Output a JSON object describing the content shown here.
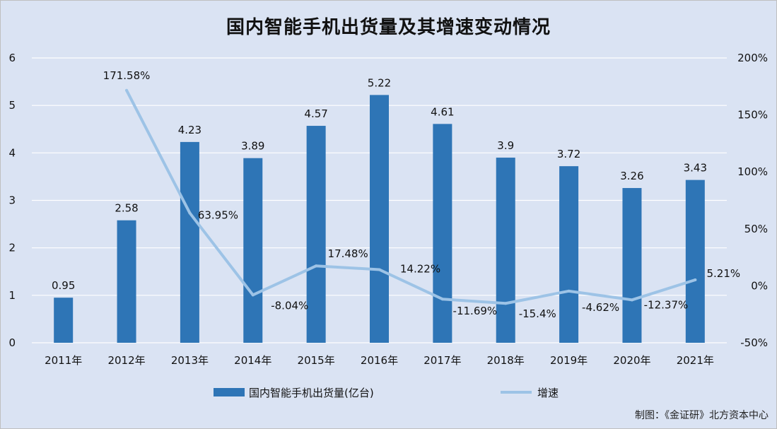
{
  "title": "国内智能手机出货量及其增速变动情况",
  "credit": "制图：《金证研》北方资本中心",
  "colors": {
    "background": "#dae3f3",
    "bar": "#2e75b6",
    "line": "#9dc3e6",
    "grid": "#ffffff",
    "text": "#111111"
  },
  "chart_data": {
    "type": "bar+line",
    "categories": [
      "2011年",
      "2012年",
      "2013年",
      "2014年",
      "2015年",
      "2016年",
      "2017年",
      "2018年",
      "2019年",
      "2020年",
      "2021年"
    ],
    "series": [
      {
        "name": "国内智能手机出货量(亿台)",
        "type": "bar",
        "axis": "left",
        "values": [
          0.95,
          2.58,
          4.23,
          3.89,
          4.57,
          5.22,
          4.61,
          3.9,
          3.72,
          3.26,
          3.43
        ],
        "labels": [
          "0.95",
          "2.58",
          "4.23",
          "3.89",
          "4.57",
          "5.22",
          "4.61",
          "3.9",
          "3.72",
          "3.26",
          "3.43"
        ]
      },
      {
        "name": "增速",
        "type": "line",
        "axis": "right",
        "values": [
          null,
          171.58,
          63.95,
          -8.04,
          17.48,
          14.22,
          -11.69,
          -15.4,
          -4.62,
          -12.37,
          5.21
        ],
        "labels": [
          "",
          "171.58%",
          "63.95%",
          "-8.04%",
          "17.48%",
          "14.22%",
          "-11.69%",
          "-15.4%",
          "-4.62%",
          "-12.37%",
          "5.21%"
        ]
      }
    ],
    "y_left": {
      "min": 0,
      "max": 6,
      "ticks": [
        "0",
        "1",
        "2",
        "3",
        "4",
        "5",
        "6"
      ]
    },
    "y_right": {
      "min": -50,
      "max": 200,
      "ticks": [
        "-50%",
        "0%",
        "50%",
        "100%",
        "150%",
        "200%"
      ]
    },
    "grid": true,
    "legend": "bottom"
  }
}
